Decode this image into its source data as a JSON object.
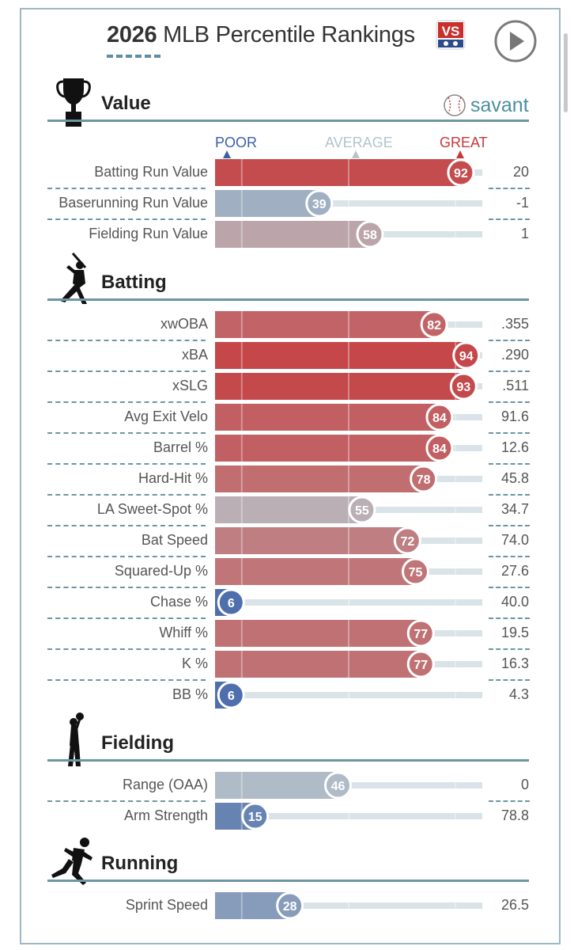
{
  "header": {
    "title_year": "2026",
    "title_rest": "MLB Percentile Rankings",
    "logo_text": "VS"
  },
  "savant_label": "savant",
  "scale": {
    "poor": "POOR",
    "average": "AVERAGE",
    "great": "GREAT"
  },
  "colors": {
    "poor": "#3a5fa6",
    "average": "#b8c2c8",
    "great": "#c6393a",
    "track": "#d9e3e8",
    "accent": "#6d95a3"
  },
  "chart_data": {
    "type": "bar",
    "orientation": "horizontal",
    "xlim": [
      0,
      100
    ],
    "sections": [
      {
        "title": "Value",
        "icon": "trophy-icon",
        "metrics": [
          {
            "label": "Batting Run Value",
            "percentile": 92,
            "value": "20"
          },
          {
            "label": "Baserunning Run Value",
            "percentile": 39,
            "value": "-1"
          },
          {
            "label": "Fielding Run Value",
            "percentile": 58,
            "value": "1"
          }
        ]
      },
      {
        "title": "Batting",
        "icon": "batter-icon",
        "metrics": [
          {
            "label": "xwOBA",
            "percentile": 82,
            "value": ".355"
          },
          {
            "label": "xBA",
            "percentile": 94,
            "value": ".290"
          },
          {
            "label": "xSLG",
            "percentile": 93,
            "value": ".511"
          },
          {
            "label": "Avg Exit Velo",
            "percentile": 84,
            "value": "91.6"
          },
          {
            "label": "Barrel %",
            "percentile": 84,
            "value": "12.6"
          },
          {
            "label": "Hard-Hit %",
            "percentile": 78,
            "value": "45.8"
          },
          {
            "label": "LA Sweet-Spot %",
            "percentile": 55,
            "value": "34.7"
          },
          {
            "label": "Bat Speed",
            "percentile": 72,
            "value": "74.0"
          },
          {
            "label": "Squared-Up %",
            "percentile": 75,
            "value": "27.6"
          },
          {
            "label": "Chase %",
            "percentile": 6,
            "value": "40.0"
          },
          {
            "label": "Whiff %",
            "percentile": 77,
            "value": "19.5"
          },
          {
            "label": "K %",
            "percentile": 77,
            "value": "16.3"
          },
          {
            "label": "BB %",
            "percentile": 6,
            "value": "4.3"
          }
        ]
      },
      {
        "title": "Fielding",
        "icon": "fielder-icon",
        "metrics": [
          {
            "label": "Range (OAA)",
            "percentile": 46,
            "value": "0"
          },
          {
            "label": "Arm Strength",
            "percentile": 15,
            "value": "78.8"
          }
        ]
      },
      {
        "title": "Running",
        "icon": "runner-icon",
        "metrics": [
          {
            "label": "Sprint Speed",
            "percentile": 28,
            "value": "26.5"
          }
        ]
      }
    ]
  }
}
